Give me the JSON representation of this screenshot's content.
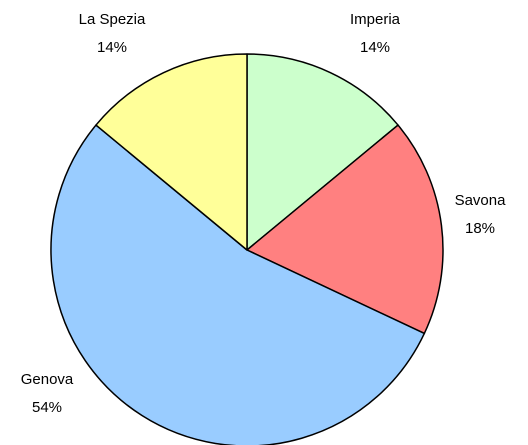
{
  "chart_data": {
    "type": "pie",
    "categories": [
      "Imperia",
      "Savona",
      "Genova",
      "La Spezia"
    ],
    "values": [
      14,
      18,
      54,
      14
    ],
    "value_labels": [
      "14%",
      "18%",
      "54%",
      "14%"
    ],
    "colors": [
      "#ccffcc",
      "#ff8080",
      "#99ccff",
      "#ffff99"
    ]
  }
}
